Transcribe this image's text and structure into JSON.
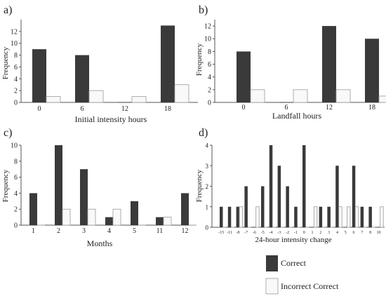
{
  "colors": {
    "correct": "#3a3a3a",
    "incorrect": "#f9f9f9",
    "incorrect_stroke": "#9a9a9a",
    "axis": "#555555"
  },
  "legend": {
    "correct": "Correct",
    "incorrect": "Incorrect Correct"
  },
  "chart_data": [
    {
      "type": "bar",
      "panel_label": "a)",
      "xlabel": "Initial intensity hours",
      "ylabel": "Frequency",
      "ylim": [
        0,
        14
      ],
      "yticks": [
        0,
        2,
        4,
        6,
        8,
        10,
        12
      ],
      "categories": [
        "0",
        "6",
        "12",
        "18"
      ],
      "series": [
        {
          "name": "Correct",
          "values": [
            9,
            8,
            0,
            13
          ]
        },
        {
          "name": "Incorrect Correct",
          "values": [
            1,
            2,
            1,
            3
          ]
        }
      ]
    },
    {
      "type": "bar",
      "panel_label": "b)",
      "xlabel": "Landfall hours",
      "ylabel": "Frequency",
      "ylim": [
        0,
        13
      ],
      "yticks": [
        0,
        2,
        4,
        6,
        8,
        10,
        12
      ],
      "categories": [
        "0",
        "6",
        "12",
        "18"
      ],
      "series": [
        {
          "name": "Correct",
          "values": [
            8,
            0,
            12,
            10
          ]
        },
        {
          "name": "Incorrect Correct",
          "values": [
            2,
            2,
            2,
            1
          ]
        }
      ]
    },
    {
      "type": "bar",
      "panel_label": "c)",
      "xlabel": "Months",
      "ylabel": "Frequency",
      "ylim": [
        0,
        10
      ],
      "yticks": [
        0,
        2,
        4,
        6,
        8,
        10
      ],
      "categories": [
        "1",
        "2",
        "3",
        "4",
        "5",
        "11",
        "12"
      ],
      "series": [
        {
          "name": "Correct",
          "values": [
            4,
            10,
            7,
            1,
            3,
            1,
            4
          ]
        },
        {
          "name": "Incorrect Correct",
          "values": [
            0,
            2,
            2,
            2,
            0,
            1,
            0
          ]
        }
      ]
    },
    {
      "type": "bar",
      "panel_label": "d)",
      "xlabel": "24-hour intensity change",
      "ylabel": "Frequency",
      "ylim": [
        0,
        4
      ],
      "yticks": [
        0,
        1,
        2,
        3,
        4
      ],
      "categories": [
        "-15",
        "-11",
        "-8",
        "-7",
        "-6",
        "-5",
        "-4",
        "-3",
        "-2",
        "-1",
        "0",
        "1",
        "2",
        "3",
        "4",
        "5",
        "6",
        "7",
        "8",
        "10"
      ],
      "series": [
        {
          "name": "Correct",
          "values": [
            1,
            1,
            1,
            2,
            0,
            2,
            4,
            3,
            2,
            1,
            4,
            0,
            1,
            1,
            3,
            0,
            3,
            1,
            1,
            0
          ]
        },
        {
          "name": "Incorrect Correct",
          "values": [
            0,
            0,
            1,
            0,
            1,
            0,
            0,
            0,
            0,
            0,
            0,
            1,
            0,
            0,
            1,
            1,
            1,
            0,
            0,
            1
          ]
        }
      ]
    }
  ]
}
